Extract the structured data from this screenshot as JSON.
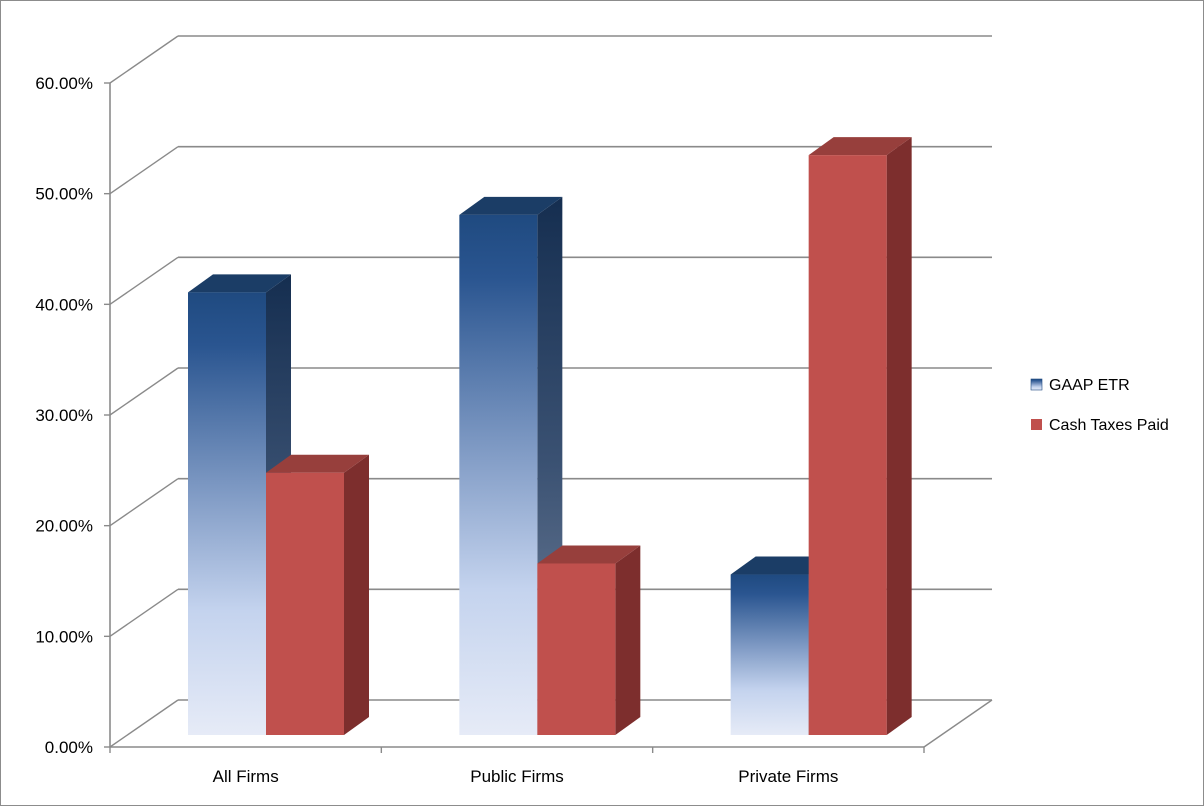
{
  "chart_data": {
    "type": "bar",
    "title": "",
    "xlabel": "",
    "ylabel": "",
    "categories": [
      "All Firms",
      "Public Firms",
      "Private Firms"
    ],
    "series": [
      {
        "name": "GAAP ETR",
        "values": [
          0.4,
          0.47,
          0.145
        ],
        "color": "#1f497d"
      },
      {
        "name": "Cash Taxes Paid",
        "values": [
          0.237,
          0.155,
          0.524
        ],
        "color": "#c0504d"
      }
    ],
    "ylim": [
      0,
      0.6
    ],
    "yticks": [
      "0.00%",
      "10.00%",
      "20.00%",
      "30.00%",
      "40.00%",
      "50.00%",
      "60.00%"
    ],
    "grid": true,
    "legend_position": "right",
    "three_d": true
  }
}
